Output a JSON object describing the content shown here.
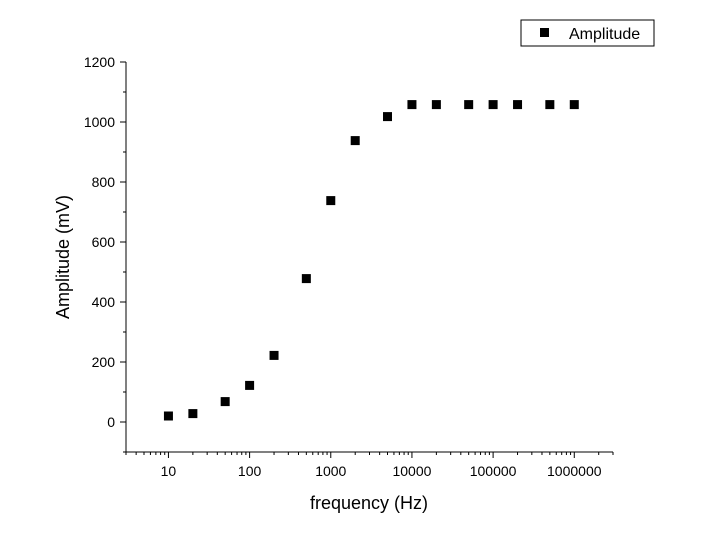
{
  "chart_data": {
    "type": "scatter",
    "title": "",
    "xlabel": "frequency (Hz)",
    "ylabel": "Amplitude (mV)",
    "x_scale": "log",
    "xlim": [
      3,
      3000000
    ],
    "ylim": [
      -100,
      1200
    ],
    "x_ticks": [
      10,
      100,
      1000,
      10000,
      100000,
      1000000
    ],
    "x_tick_labels": [
      "10",
      "100",
      "1000",
      "10000",
      "100000",
      "1000000"
    ],
    "y_ticks": [
      0,
      200,
      400,
      600,
      800,
      1000,
      1200
    ],
    "y_tick_labels": [
      "0",
      "200",
      "400",
      "600",
      "800",
      "1000",
      "1200"
    ],
    "grid": false,
    "legend": {
      "placement": "top-right",
      "entries": [
        "Amplitude"
      ]
    },
    "marker_color": "#000000",
    "series": [
      {
        "name": "Amplitude",
        "marker": "square",
        "x": [
          10,
          20,
          50,
          100,
          200,
          500,
          1000,
          2000,
          5000,
          10000,
          20000,
          50000,
          100000,
          200000,
          500000,
          1000000
        ],
        "y": [
          20,
          28,
          68,
          122,
          222,
          478,
          738,
          938,
          1018,
          1058,
          1058,
          1058,
          1058,
          1058,
          1058,
          1058
        ]
      }
    ]
  }
}
